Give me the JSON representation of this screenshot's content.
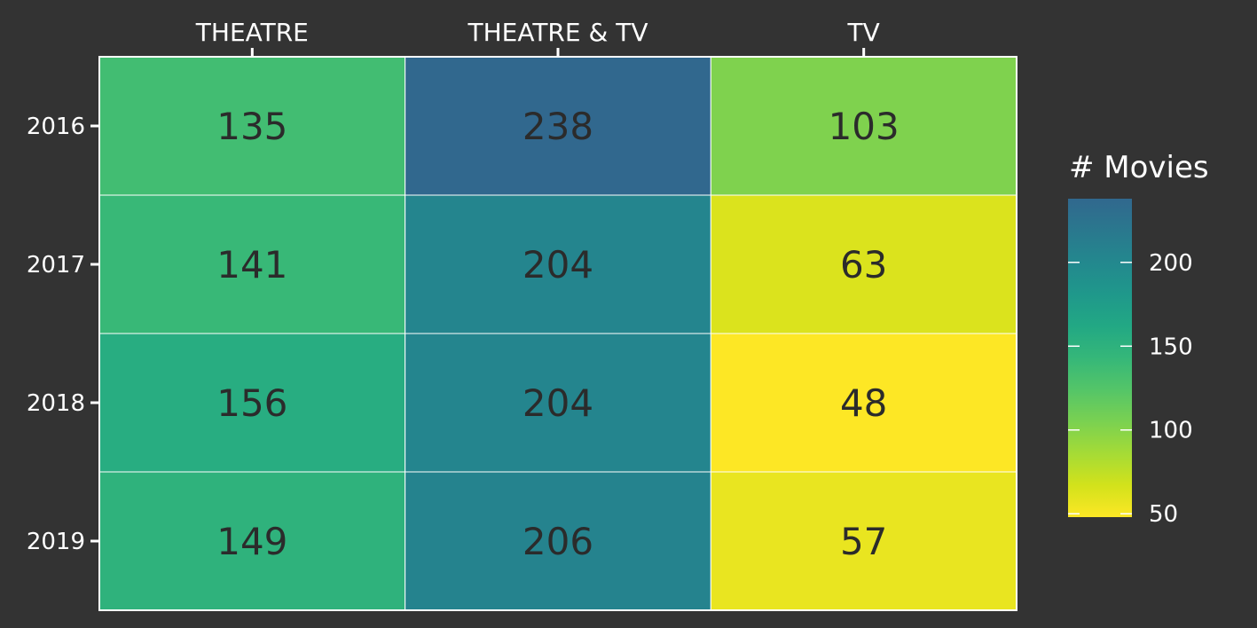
{
  "chart_data": {
    "type": "heatmap",
    "title": "",
    "xlabel": "",
    "ylabel": "",
    "x_position": "top",
    "columns": [
      "THEATRE",
      "THEATRE & TV",
      "TV"
    ],
    "rows": [
      "2016",
      "2017",
      "2018",
      "2019"
    ],
    "values": [
      [
        135,
        238,
        103
      ],
      [
        141,
        204,
        63
      ],
      [
        156,
        204,
        48
      ],
      [
        149,
        206,
        57
      ]
    ],
    "legend": {
      "title": "# Movies",
      "placement": "right",
      "range": [
        48,
        238
      ],
      "ticks": [
        50,
        100,
        150,
        200
      ],
      "tick_labels": [
        "50",
        "100",
        "150",
        "200"
      ],
      "colormap": "viridis-reversed"
    },
    "colors": {
      "background": "#333333",
      "cell_border": "#ffffff",
      "text": "#ffffff",
      "cell_text": "#2b2b2b"
    }
  }
}
